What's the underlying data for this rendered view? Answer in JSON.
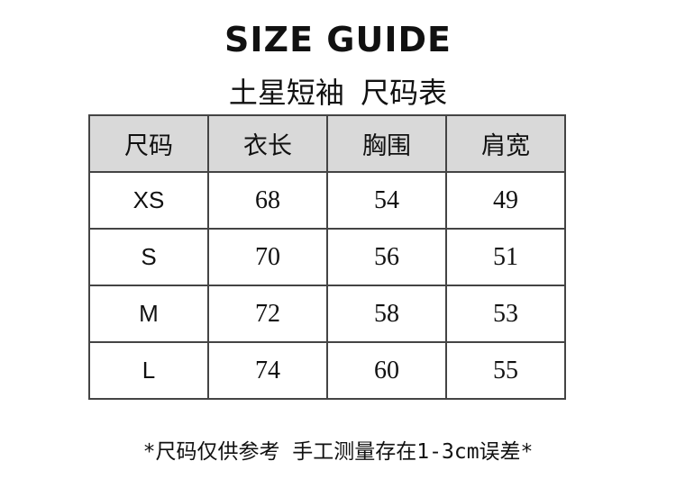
{
  "title": "SIZE GUIDE",
  "subtitle": "土星短袖 尺码表",
  "table": {
    "headers": [
      "尺码",
      "衣长",
      "胸围",
      "肩宽"
    ],
    "rows": [
      [
        "XS",
        "68",
        "54",
        "49"
      ],
      [
        "S",
        "70",
        "56",
        "51"
      ],
      [
        "M",
        "72",
        "58",
        "53"
      ],
      [
        "L",
        "74",
        "60",
        "55"
      ]
    ]
  },
  "note": "*尺码仅供参考 手工测量存在1-3cm误差*"
}
